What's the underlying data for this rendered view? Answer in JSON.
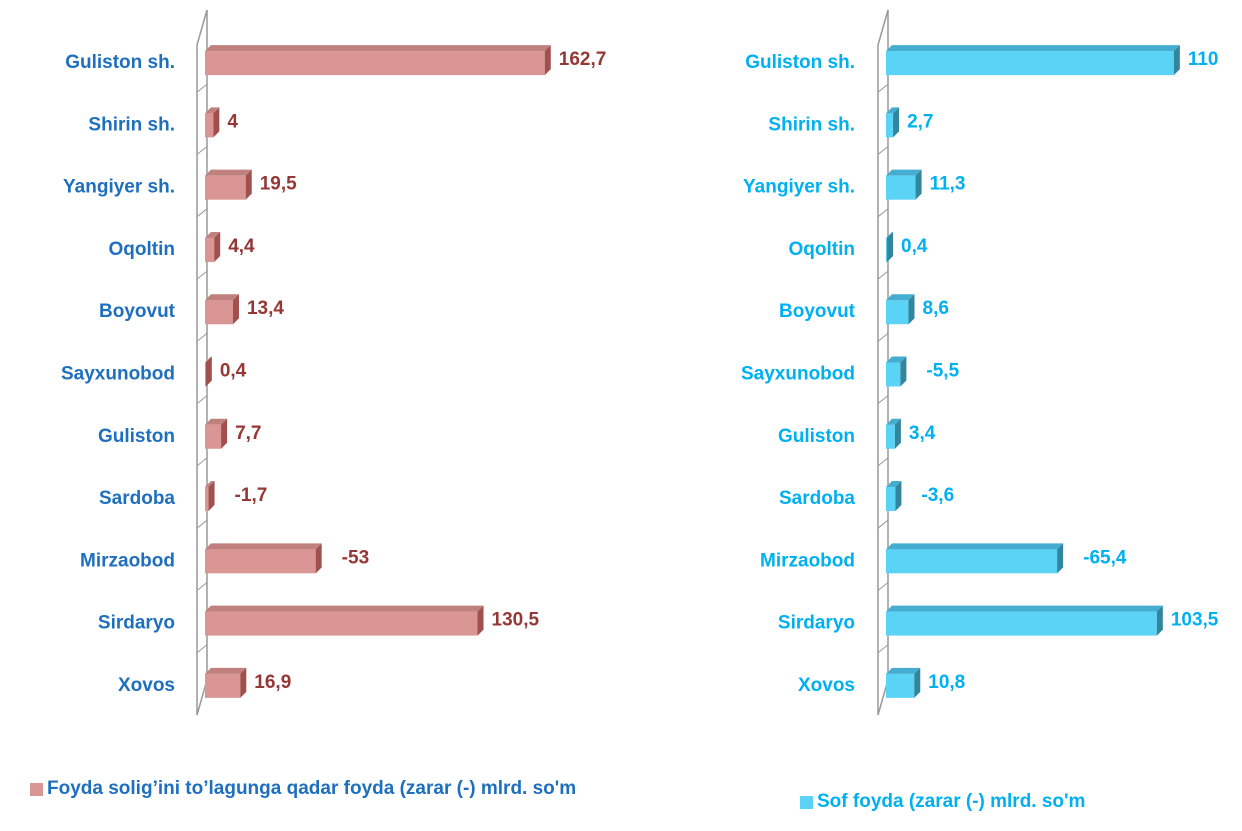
{
  "chart_data": [
    {
      "type": "bar3d",
      "categories": [
        "Guliston sh.",
        "Shirin sh.",
        "Yangiyer sh.",
        "Oqoltin",
        "Boyovut",
        "Sayxunobod",
        "Guliston",
        "Sardoba",
        "Mirzaobod",
        "Sirdaryo",
        "Xovos"
      ],
      "series": [
        {
          "name": "Foyda solig’ini to’lagunga qadar foyda (zarar (-) mlrd. so'm",
          "color": "#d99694",
          "values": [
            162.7,
            4,
            19.5,
            4.4,
            13.4,
            0.4,
            7.7,
            -1.7,
            -53,
            130.5,
            16.9
          ],
          "value_labels": [
            "162,7",
            "4",
            "19,5",
            "4,4",
            "13,4",
            "0,4",
            "7,7",
            "-1,7",
            "-53",
            "130,5",
            "16,9"
          ]
        }
      ],
      "xlim": [
        0,
        170
      ]
    },
    {
      "type": "bar3d",
      "categories": [
        "Guliston sh.",
        "Shirin sh.",
        "Yangiyer sh.",
        "Oqoltin",
        "Boyovut",
        "Sayxunobod",
        "Guliston",
        "Sardoba",
        "Mirzaobod",
        "Sirdaryo",
        "Xovos"
      ],
      "series": [
        {
          "name": "Sof foyda (zarar (-) mlrd. so'm",
          "color": "#5bd3f7",
          "values": [
            110,
            2.7,
            11.3,
            0.4,
            8.6,
            -5.5,
            3.4,
            -3.6,
            -65.4,
            103.5,
            10.8
          ],
          "value_labels": [
            "110",
            "2,7",
            "11,3",
            "0,4",
            "8,6",
            "-5,5",
            "3,4",
            "-3,6",
            "-65,4",
            "103,5",
            "10,8"
          ]
        }
      ],
      "xlim": [
        0,
        120
      ]
    }
  ]
}
